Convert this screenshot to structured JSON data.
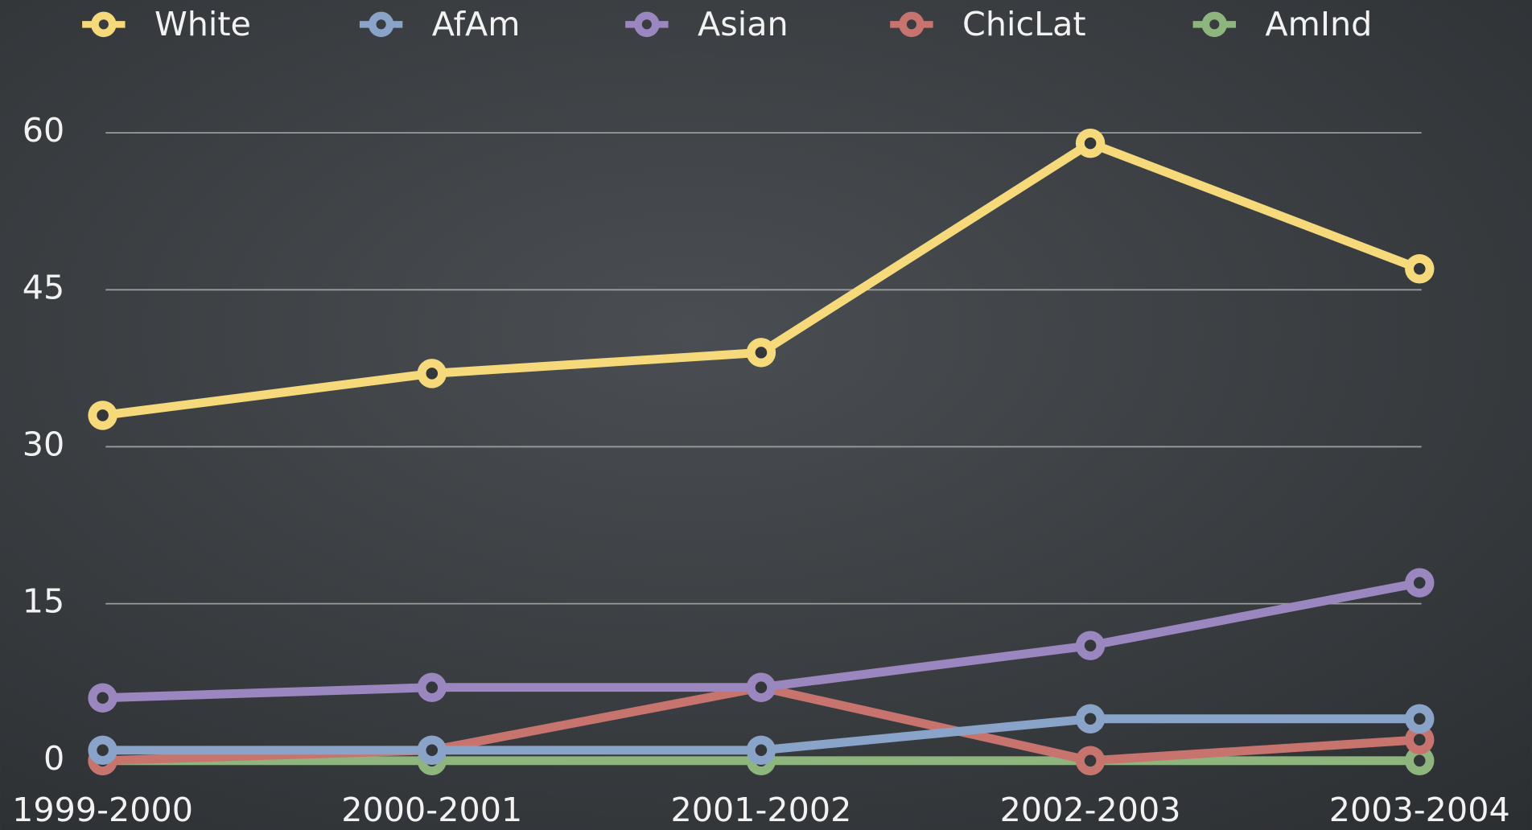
{
  "chart_data": {
    "type": "line",
    "categories": [
      "1999-2000",
      "2000-2001",
      "2001-2002",
      "2002-2003",
      "2003-2004"
    ],
    "series": [
      {
        "name": "White",
        "color": "#f5d97a",
        "values": [
          33,
          37,
          39,
          59,
          47
        ]
      },
      {
        "name": "AfAm",
        "color": "#8aa3c9",
        "values": [
          1,
          1,
          1,
          4,
          4
        ]
      },
      {
        "name": "Asian",
        "color": "#9b87c0",
        "values": [
          6,
          7,
          7,
          11,
          17
        ]
      },
      {
        "name": "ChicLat",
        "color": "#c7736e",
        "values": [
          0,
          1,
          7,
          0,
          2
        ]
      },
      {
        "name": "AmInd",
        "color": "#8fb57f",
        "values": [
          0,
          0,
          0,
          0,
          0
        ]
      }
    ],
    "ylim": [
      0,
      60
    ],
    "yticks": [
      0,
      15,
      30,
      45,
      60
    ],
    "grid": true,
    "legend": "top"
  }
}
